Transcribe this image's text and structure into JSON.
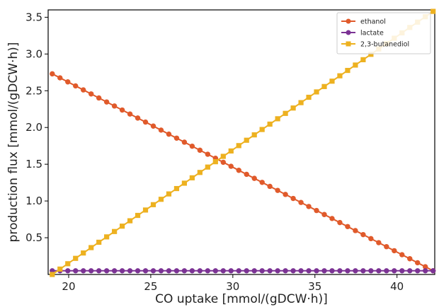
{
  "chart_data": {
    "type": "line",
    "title": "",
    "xlabel": "CO uptake [mmol/(gDCW·h)]",
    "ylabel": "production flux [mmol/(gDCW·h)]",
    "xlim": [
      18.75,
      42.3
    ],
    "ylim": [
      0.0,
      3.6
    ],
    "xticks": [
      20,
      25,
      30,
      35,
      40
    ],
    "yticks": [
      0.5,
      1.0,
      1.5,
      2.0,
      2.5,
      3.0,
      3.5
    ],
    "xtick_labels": [
      "20",
      "25",
      "30",
      "35",
      "40"
    ],
    "ytick_labels": [
      "0.5",
      "1.0",
      "1.5",
      "2.0",
      "2.5",
      "3.0",
      "3.5"
    ],
    "grid": false,
    "legend_position": "top-right",
    "x_start": 19.0,
    "x_end": 42.2,
    "num_points": 50,
    "series": [
      {
        "name": "ethanol",
        "color": "#E05A2B",
        "marker": "circle",
        "y_start": 2.73,
        "y_end": 0.05
      },
      {
        "name": "lactate",
        "color": "#7B3294",
        "marker": "circle",
        "y_start": 0.05,
        "y_end": 0.05
      },
      {
        "name": "2,3-butanediol",
        "color": "#EDB120",
        "marker": "square",
        "y_start": 0.0,
        "y_end": 3.58
      }
    ]
  }
}
